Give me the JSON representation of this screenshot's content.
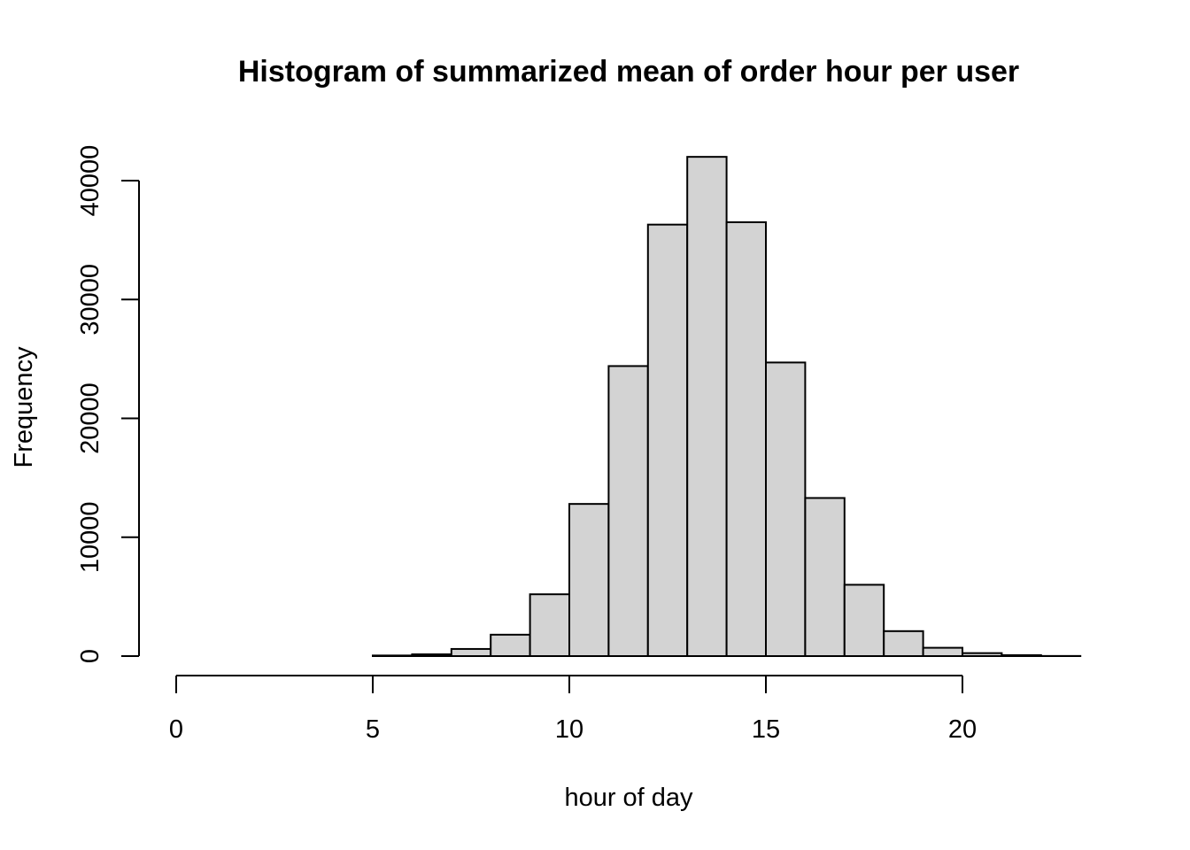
{
  "chart_data": {
    "type": "bar",
    "title": "Histogram of summarized mean of order hour per user",
    "xlabel": "hour of day",
    "ylabel": "Frequency",
    "bar_color": "#d3d3d3",
    "border_color": "#000000",
    "bins": [
      {
        "x0": 0,
        "x1": 1,
        "count": 0
      },
      {
        "x0": 1,
        "x1": 2,
        "count": 0
      },
      {
        "x0": 2,
        "x1": 3,
        "count": 0
      },
      {
        "x0": 3,
        "x1": 4,
        "count": 0
      },
      {
        "x0": 4,
        "x1": 5,
        "count": 0
      },
      {
        "x0": 5,
        "x1": 6,
        "count": 50
      },
      {
        "x0": 6,
        "x1": 7,
        "count": 150
      },
      {
        "x0": 7,
        "x1": 8,
        "count": 600
      },
      {
        "x0": 8,
        "x1": 9,
        "count": 1800
      },
      {
        "x0": 9,
        "x1": 10,
        "count": 5200
      },
      {
        "x0": 10,
        "x1": 11,
        "count": 12800
      },
      {
        "x0": 11,
        "x1": 12,
        "count": 24400
      },
      {
        "x0": 12,
        "x1": 13,
        "count": 36300
      },
      {
        "x0": 13,
        "x1": 14,
        "count": 42000
      },
      {
        "x0": 14,
        "x1": 15,
        "count": 36500
      },
      {
        "x0": 15,
        "x1": 16,
        "count": 24700
      },
      {
        "x0": 16,
        "x1": 17,
        "count": 13300
      },
      {
        "x0": 17,
        "x1": 18,
        "count": 6000
      },
      {
        "x0": 18,
        "x1": 19,
        "count": 2100
      },
      {
        "x0": 19,
        "x1": 20,
        "count": 700
      },
      {
        "x0": 20,
        "x1": 21,
        "count": 250
      },
      {
        "x0": 21,
        "x1": 22,
        "count": 80
      },
      {
        "x0": 22,
        "x1": 23,
        "count": 10
      }
    ],
    "xlim": [
      0,
      23
    ],
    "ylim": [
      0,
      42000
    ],
    "x_ticks": [
      0,
      5,
      10,
      15,
      20
    ],
    "x_tick_labels": [
      "0",
      "5",
      "10",
      "15",
      "20"
    ],
    "y_ticks": [
      0,
      10000,
      20000,
      30000,
      40000
    ],
    "y_tick_labels": [
      "0",
      "10000",
      "20000",
      "30000",
      "40000"
    ],
    "grid": false,
    "legend": "none"
  }
}
